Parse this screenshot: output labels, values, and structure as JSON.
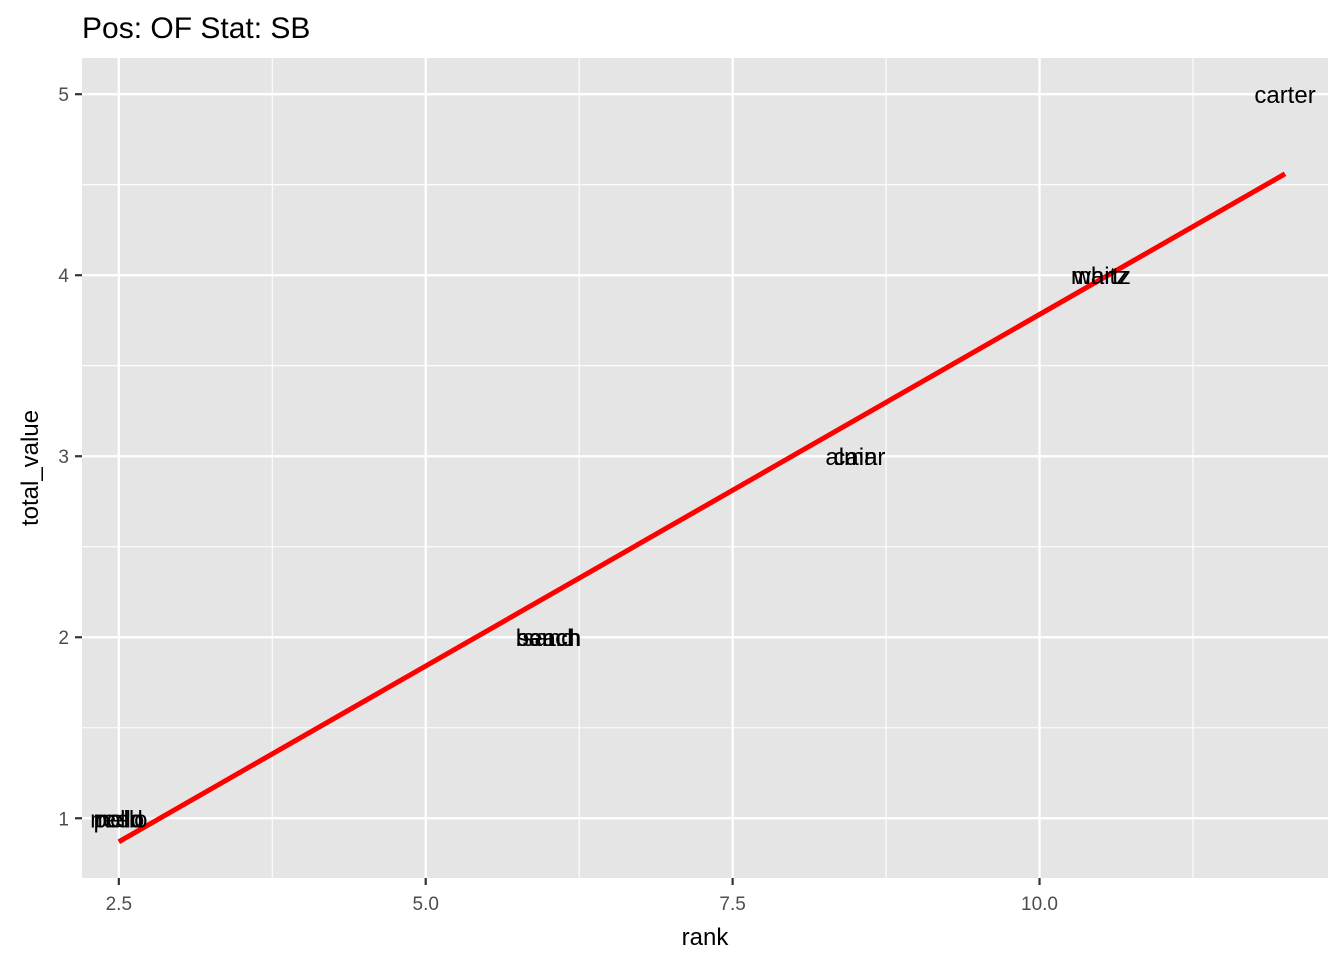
{
  "chart_data": {
    "type": "scatter",
    "title": "Pos: OF Stat: SB",
    "xlabel": "rank",
    "ylabel": "total_value",
    "xlim": [
      2.2,
      12.35
    ],
    "ylim": [
      0.67,
      5.2
    ],
    "x_ticks": [
      2.5,
      5.0,
      7.5,
      10.0
    ],
    "x_tick_labels": [
      "2.5",
      "5.0",
      "7.5",
      "10.0"
    ],
    "y_ticks": [
      1,
      2,
      3,
      4,
      5
    ],
    "y_tick_labels": [
      "1",
      "2",
      "3",
      "4",
      "5"
    ],
    "grid": true,
    "legend": "none",
    "points": [
      {
        "label": "mello",
        "x": 2.5,
        "y": 1
      },
      {
        "label": "pollo",
        "x": 2.5,
        "y": 1
      },
      {
        "label": "reed",
        "x": 2.5,
        "y": 1
      },
      {
        "label": "beach",
        "x": 6.0,
        "y": 2
      },
      {
        "label": "sand",
        "x": 6.0,
        "y": 2
      },
      {
        "label": "sanch",
        "x": 6.0,
        "y": 2
      },
      {
        "label": "cain",
        "x": 8.5,
        "y": 3
      },
      {
        "label": "almar",
        "x": 8.5,
        "y": 3
      },
      {
        "label": "martz",
        "x": 10.5,
        "y": 4
      },
      {
        "label": "whitz",
        "x": 10.5,
        "y": 4
      },
      {
        "label": "carter",
        "x": 12.0,
        "y": 5
      }
    ],
    "trend_line": {
      "color": "#ff0000",
      "from": [
        2.5,
        0.87
      ],
      "to": [
        12.0,
        4.56
      ]
    },
    "colors": {
      "panel": "#e5e5e5",
      "grid": "#ffffff",
      "text": "#000000",
      "tick_text": "#4d4d4d"
    }
  }
}
